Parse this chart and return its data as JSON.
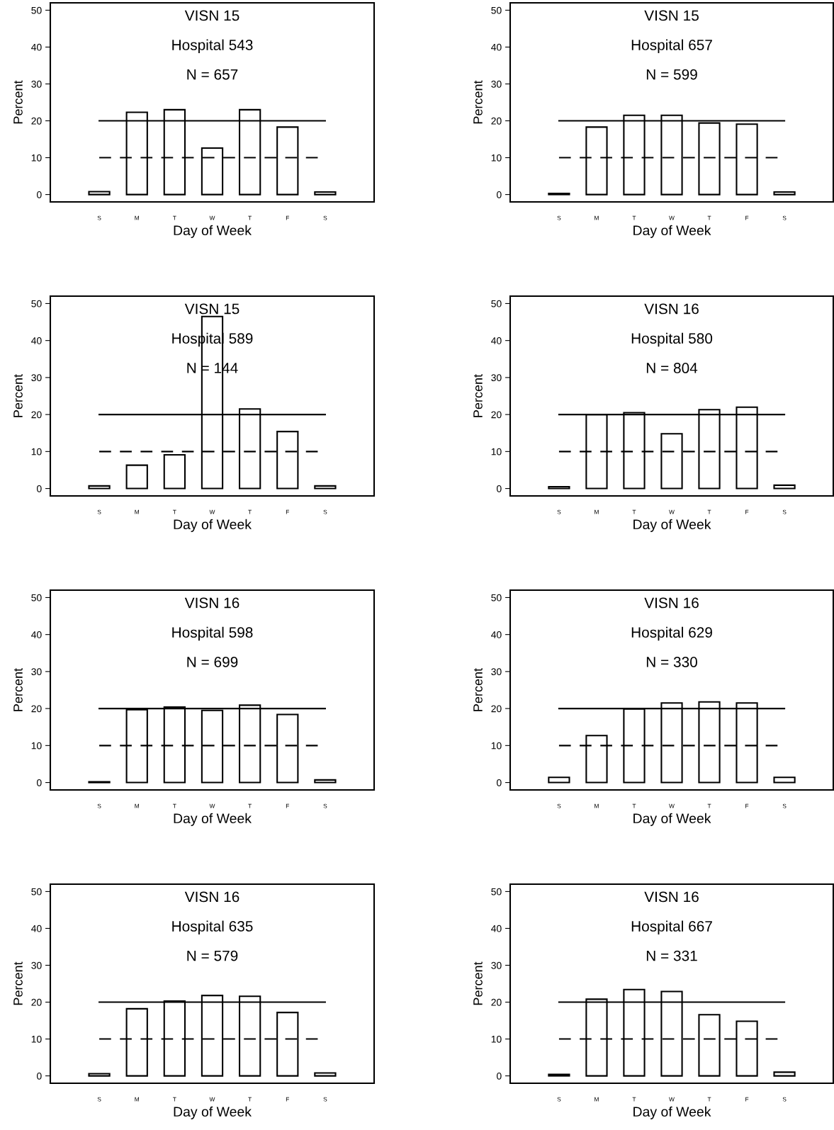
{
  "chart_data": [
    {
      "type": "bar",
      "title": "VISN 15",
      "subtitle": "Hospital 543",
      "annotations": [
        "N = 657"
      ],
      "xlabel": "Day of Week",
      "ylabel": "Percent",
      "categories": [
        "S",
        "M",
        "T",
        "W",
        "T",
        "F",
        "S"
      ],
      "values": [
        0.8,
        22.3,
        23.0,
        12.6,
        23.0,
        18.3,
        0.7
      ],
      "color": "#ffffff",
      "ylim": [
        -2,
        52
      ],
      "yticks": [
        0,
        10,
        20,
        30,
        40,
        50
      ],
      "grid": false,
      "ref_lines": [
        {
          "axis": "y",
          "value": 20,
          "line_style": "solid"
        },
        {
          "axis": "y",
          "value": 10,
          "line_style": "dashed"
        }
      ]
    },
    {
      "type": "bar",
      "title": "VISN 15",
      "subtitle": "Hospital 657",
      "annotations": [
        "N = 599"
      ],
      "xlabel": "Day of Week",
      "ylabel": "Percent",
      "categories": [
        "S",
        "M",
        "T",
        "W",
        "T",
        "F",
        "S"
      ],
      "values": [
        0.3,
        18.3,
        21.5,
        21.5,
        19.4,
        19.1,
        0.7
      ],
      "color": "#ffffff",
      "ylim": [
        -2,
        52
      ],
      "yticks": [
        0,
        10,
        20,
        30,
        40,
        50
      ],
      "grid": false,
      "ref_lines": [
        {
          "axis": "y",
          "value": 20,
          "line_style": "solid"
        },
        {
          "axis": "y",
          "value": 10,
          "line_style": "dashed"
        }
      ]
    },
    {
      "type": "bar",
      "title": "VISN 15",
      "subtitle": "Hospital 589",
      "annotations": [
        "N = 144"
      ],
      "xlabel": "Day of Week",
      "ylabel": "Percent",
      "categories": [
        "S",
        "M",
        "T",
        "W",
        "T",
        "F",
        "S"
      ],
      "values": [
        0.7,
        6.3,
        9.1,
        46.5,
        21.5,
        15.4,
        0.7
      ],
      "color": "#ffffff",
      "ylim": [
        -2,
        52
      ],
      "yticks": [
        0,
        10,
        20,
        30,
        40,
        50
      ],
      "grid": false,
      "ref_lines": [
        {
          "axis": "y",
          "value": 20,
          "line_style": "solid"
        },
        {
          "axis": "y",
          "value": 10,
          "line_style": "dashed"
        }
      ]
    },
    {
      "type": "bar",
      "title": "VISN 16",
      "subtitle": "Hospital 580",
      "annotations": [
        "N = 804"
      ],
      "xlabel": "Day of Week",
      "ylabel": "Percent",
      "categories": [
        "S",
        "M",
        "T",
        "W",
        "T",
        "F",
        "S"
      ],
      "values": [
        0.5,
        20.0,
        20.5,
        14.8,
        21.3,
        22.0,
        0.9
      ],
      "color": "#ffffff",
      "ylim": [
        -2,
        52
      ],
      "yticks": [
        0,
        10,
        20,
        30,
        40,
        50
      ],
      "grid": false,
      "ref_lines": [
        {
          "axis": "y",
          "value": 20,
          "line_style": "solid"
        },
        {
          "axis": "y",
          "value": 10,
          "line_style": "dashed"
        }
      ]
    },
    {
      "type": "bar",
      "title": "VISN 16",
      "subtitle": "Hospital 598",
      "annotations": [
        "N = 699"
      ],
      "xlabel": "Day of Week",
      "ylabel": "Percent",
      "categories": [
        "S",
        "M",
        "T",
        "W",
        "T",
        "F",
        "S"
      ],
      "values": [
        0.2,
        19.7,
        20.4,
        19.5,
        20.9,
        18.4,
        0.7
      ],
      "color": "#ffffff",
      "ylim": [
        -2,
        52
      ],
      "yticks": [
        0,
        10,
        20,
        30,
        40,
        50
      ],
      "grid": false,
      "ref_lines": [
        {
          "axis": "y",
          "value": 20,
          "line_style": "solid"
        },
        {
          "axis": "y",
          "value": 10,
          "line_style": "dashed"
        }
      ]
    },
    {
      "type": "bar",
      "title": "VISN 16",
      "subtitle": "Hospital 629",
      "annotations": [
        "N = 330"
      ],
      "xlabel": "Day of Week",
      "ylabel": "Percent",
      "categories": [
        "S",
        "M",
        "T",
        "W",
        "T",
        "F",
        "S"
      ],
      "values": [
        1.4,
        12.7,
        19.9,
        21.5,
        21.8,
        21.5,
        1.4
      ],
      "color": "#ffffff",
      "ylim": [
        -2,
        52
      ],
      "yticks": [
        0,
        10,
        20,
        30,
        40,
        50
      ],
      "grid": false,
      "ref_lines": [
        {
          "axis": "y",
          "value": 20,
          "line_style": "solid"
        },
        {
          "axis": "y",
          "value": 10,
          "line_style": "dashed"
        }
      ]
    },
    {
      "type": "bar",
      "title": "VISN 16",
      "subtitle": "Hospital 635",
      "annotations": [
        "N = 579"
      ],
      "xlabel": "Day of Week",
      "ylabel": "Percent",
      "categories": [
        "S",
        "M",
        "T",
        "W",
        "T",
        "F",
        "S"
      ],
      "values": [
        0.6,
        18.2,
        20.3,
        21.8,
        21.6,
        17.2,
        0.8
      ],
      "color": "#ffffff",
      "ylim": [
        -2,
        52
      ],
      "yticks": [
        0,
        10,
        20,
        30,
        40,
        50
      ],
      "grid": false,
      "ref_lines": [
        {
          "axis": "y",
          "value": 20,
          "line_style": "solid"
        },
        {
          "axis": "y",
          "value": 10,
          "line_style": "dashed"
        }
      ]
    },
    {
      "type": "bar",
      "title": "VISN 16",
      "subtitle": "Hospital 667",
      "annotations": [
        "N = 331"
      ],
      "xlabel": "Day of Week",
      "ylabel": "Percent",
      "categories": [
        "S",
        "M",
        "T",
        "W",
        "T",
        "F",
        "S"
      ],
      "values": [
        0.4,
        20.8,
        23.4,
        22.9,
        16.6,
        14.8,
        1.0
      ],
      "color": "#ffffff",
      "ylim": [
        -2,
        52
      ],
      "yticks": [
        0,
        10,
        20,
        30,
        40,
        50
      ],
      "grid": false,
      "ref_lines": [
        {
          "axis": "y",
          "value": 20,
          "line_style": "solid"
        },
        {
          "axis": "y",
          "value": 10,
          "line_style": "dashed"
        }
      ]
    }
  ]
}
